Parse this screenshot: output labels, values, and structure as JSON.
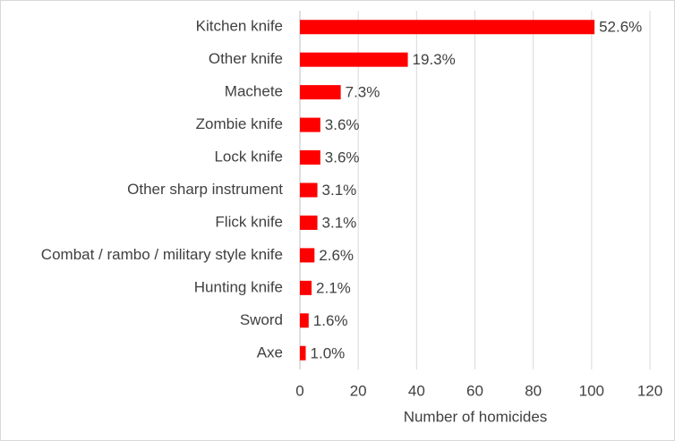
{
  "chart_data": {
    "type": "barh",
    "categories": [
      "Kitchen knife",
      "Other knife",
      "Machete",
      "Zombie knife",
      "Lock knife",
      "Other sharp instrument ",
      "Flick knife",
      "Combat / rambo / military style knife",
      "Hunting knife",
      "Sword",
      "Axe"
    ],
    "values": [
      101,
      37,
      14,
      7,
      7,
      6,
      6,
      5,
      4,
      3,
      2
    ],
    "share_labels": [
      "52.6%",
      "19.3%",
      "7.3%",
      "3.6%",
      "3.6%",
      "3.1%",
      "3.1%",
      "2.6%",
      "2.1%",
      "1.6%",
      "1.0%"
    ],
    "color": "#ff0000",
    "xlabel": "Number of homicides",
    "xlim": [
      0,
      120
    ],
    "xticks": [
      0,
      20,
      40,
      60,
      80,
      100,
      120
    ],
    "grid": true
  }
}
